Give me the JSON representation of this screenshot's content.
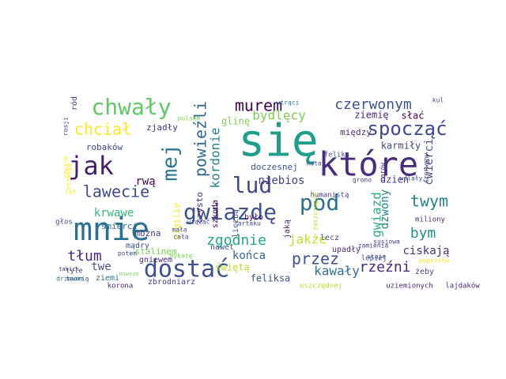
{
  "words": [
    {
      "text": "się",
      "color": "#1f9e89"
    },
    {
      "text": "które",
      "color": "#472d7b"
    },
    {
      "text": "mnie",
      "color": "#2c728e"
    },
    {
      "text": "jak",
      "color": "#481d6f"
    },
    {
      "text": "dostać",
      "color": "#3b528b"
    },
    {
      "text": "chwały",
      "color": "#5ec962"
    },
    {
      "text": "lud",
      "color": "#3e4a89"
    },
    {
      "text": "gwiazdę",
      "color": "#3b528b"
    },
    {
      "text": "pod",
      "color": "#2c728e"
    },
    {
      "text": "mej",
      "color": "#2a788e"
    },
    {
      "text": "spocząć",
      "color": "#3e4a89"
    },
    {
      "text": "twym",
      "color": "#26828e"
    },
    {
      "text": "murem",
      "color": "#440154"
    },
    {
      "text": "czerwonym",
      "color": "#3b528b"
    },
    {
      "text": "bydlęcy",
      "color": "#7ad151"
    },
    {
      "text": "chciał",
      "color": "#fde725"
    },
    {
      "text": "lawecie",
      "color": "#3e4a89"
    },
    {
      "text": "powieźli",
      "color": "#31688e"
    },
    {
      "text": "kordonie",
      "color": "#26828e"
    },
    {
      "text": "zgodnie",
      "color": "#22a884"
    },
    {
      "text": "przez",
      "color": "#3b528b"
    },
    {
      "text": "jakże",
      "color": "#bddf26"
    },
    {
      "text": "rzeźni",
      "color": "#482878"
    },
    {
      "text": "bym",
      "color": "#21918c"
    },
    {
      "text": "tłum",
      "color": "#482878"
    },
    {
      "text": "niebios",
      "color": "#414487"
    },
    {
      "text": "gwiazd",
      "color": "#29af7f"
    },
    {
      "text": "dzwony",
      "color": "#26828e"
    },
    {
      "text": "ćwierci",
      "color": "#3b528b"
    },
    {
      "text": "krwawe",
      "color": "#35b779"
    },
    {
      "text": "twe",
      "color": "#3b528b"
    },
    {
      "text": "kawały",
      "color": "#2c728e"
    },
    {
      "text": "ciskają",
      "color": "#472d7b"
    },
    {
      "text": "rwą",
      "color": "#440154"
    },
    {
      "text": "końca",
      "color": "#31688e"
    },
    {
      "text": "dzień",
      "color": "#443983"
    },
    {
      "text": "feliksa",
      "color": "#3b528b"
    },
    {
      "text": "zjadły",
      "color": "#46327e"
    },
    {
      "text": "karmiły",
      "color": "#3e4a89"
    },
    {
      "text": "doczesnej",
      "color": "#3b528b"
    },
    {
      "text": "robaków",
      "color": "#3e4a89"
    },
    {
      "text": "glinę",
      "color": "#7ad151"
    },
    {
      "text": "między",
      "color": "#472d7b"
    },
    {
      "text": "ziemię",
      "color": "#482878"
    },
    {
      "text": "słać",
      "color": "#440154"
    },
    {
      "text": "śmierci",
      "color": "#31688e"
    },
    {
      "text": "wigilie",
      "color": "#fde725"
    },
    {
      "text": "można",
      "color": "#443983"
    },
    {
      "text": "mądry",
      "color": "#3b528b"
    },
    {
      "text": "stalinem",
      "color": "#7ad151"
    },
    {
      "text": "gniewem",
      "color": "#482878"
    },
    {
      "text": "świętą",
      "color": "#b5de2b"
    },
    {
      "text": "ziemi",
      "color": "#2c728e"
    },
    {
      "text": "zbrodniarz",
      "color": "#443983"
    },
    {
      "text": "upadły",
      "color": "#472d7b"
    },
    {
      "text": "lecz",
      "color": "#3e4a89"
    },
    {
      "text": "miliony",
      "color": "#482878"
    },
    {
      "text": "żeby",
      "color": "#3e4a89"
    },
    {
      "text": "uziemionych",
      "color": "#482878"
    },
    {
      "text": "lajdaków",
      "color": "#482878"
    },
    {
      "text": "ród",
      "color": "#443983"
    },
    {
      "text": "było",
      "color": "#481467"
    },
    {
      "text": "nawet",
      "color": "#3b528b"
    },
    {
      "text": "liczbą",
      "color": "#3b528b"
    },
    {
      "text": "czysto",
      "color": "#482878"
    },
    {
      "text": "szkoda",
      "color": "#440154"
    },
    {
      "text": "jaką",
      "color": "#482878"
    },
    {
      "text": "humanistą",
      "color": "#443983"
    },
    {
      "text": "grono",
      "color": "#414487"
    },
    {
      "text": "feliks",
      "color": "#3b528b"
    },
    {
      "text": "kata",
      "color": "#3b528b"
    },
    {
      "text": "wtrąci",
      "color": "#2a788e"
    },
    {
      "text": "kul",
      "color": "#3e4a89"
    },
    {
      "text": "rosji",
      "color": "#3b528b"
    },
    {
      "text": "tyle",
      "color": "#3e4a89"
    },
    {
      "text": "teorią",
      "color": "#3b528b"
    },
    {
      "text": "korona",
      "color": "#482878"
    },
    {
      "text": "oszczędnej",
      "color": "#b5de2b"
    },
    {
      "text": "lepiej",
      "color": "#3e4a89"
    },
    {
      "text": "popiołów",
      "color": "#fde725"
    },
    {
      "text": "tartaku",
      "color": "#3e4a89"
    },
    {
      "text": "zamienia",
      "color": "#443983"
    },
    {
      "text": "staje",
      "color": "#3e4a89"
    },
    {
      "text": "susiowa",
      "color": "#443983"
    },
    {
      "text": "carów",
      "color": "#443983"
    },
    {
      "text": "pulsem",
      "color": "#7ad151"
    },
    {
      "text": "rozwagą",
      "color": "#fde725"
    },
    {
      "text": "drzewem",
      "color": "#2c728e"
    },
    {
      "text": "takich",
      "color": "#482878"
    },
    {
      "text": "nowsze",
      "color": "#7ad151"
    },
    {
      "text": "głos",
      "color": "#3e4a89"
    },
    {
      "text": "potem",
      "color": "#3e4a89"
    },
    {
      "text": "mykażę",
      "color": "#7ad151"
    },
    {
      "text": "mała",
      "color": "#3b528b"
    },
    {
      "text": "cała",
      "color": "#3b528b"
    },
    {
      "text": "wiązać",
      "color": "#3e4a89"
    },
    {
      "text": "zaszczepię",
      "color": "#b5de2b"
    },
    {
      "text": "wolały",
      "color": "#3e4a89"
    },
    {
      "text": "czerwony",
      "color": "#443983"
    },
    {
      "text": "lat",
      "color": "#fde725"
    },
    {
      "text": "zawsze",
      "color": "#fde725"
    }
  ]
}
